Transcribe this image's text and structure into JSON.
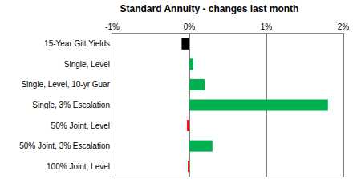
{
  "chart_data": {
    "type": "bar",
    "title": "Standard Annuity - changes last month",
    "orientation": "horizontal",
    "categories": [
      "15-Year Gilt Yields",
      "Single, Level",
      "Single, Level, 10-yr Guar",
      "Single, 3% Escalation",
      "50% Joint, Level",
      "50% Joint, 3% Escalation",
      "100% Joint, Level"
    ],
    "values": [
      -0.1,
      0.05,
      0.2,
      1.8,
      -0.03,
      0.3,
      -0.02
    ],
    "colors": [
      "#000000",
      "#00b050",
      "#00b050",
      "#00b050",
      "#ff0000",
      "#00b050",
      "#ff0000"
    ],
    "xlim": [
      -1,
      2
    ],
    "xticks": [
      {
        "value": -1,
        "label": "-1%"
      },
      {
        "value": 0,
        "label": "0%"
      },
      {
        "value": 1,
        "label": "1%"
      },
      {
        "value": 2,
        "label": "2%"
      }
    ],
    "grid": true
  }
}
